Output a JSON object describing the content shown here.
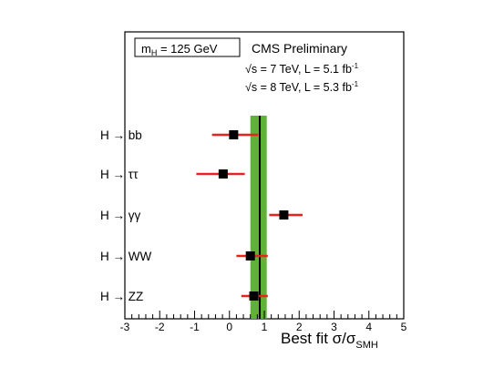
{
  "chart_data": {
    "type": "scatter",
    "annotations": {
      "mass_box": {
        "prefix": "m",
        "sub": "H",
        "rest": " = 125 GeV"
      },
      "experiment": "CMS Preliminary",
      "lumi_7": {
        "sqrt": "√s = 7 TeV, L = 5.1 fb",
        "sup": "-1"
      },
      "lumi_8": {
        "sqrt": "√s = 8 TeV, L = 5.3 fb",
        "sup": "-1"
      }
    },
    "xlabel": {
      "main": "Best fit σ/σ",
      "sub": "SMH"
    },
    "xlim": [
      -3,
      5
    ],
    "xticks": [
      "-3",
      "-2",
      "-1",
      "0",
      "1",
      "2",
      "3",
      "4",
      "5"
    ],
    "categories": [
      "H → bb",
      "H → ττ",
      "H → γγ",
      "H → WW",
      "H → ZZ"
    ],
    "values": [
      0.12,
      -0.18,
      1.56,
      0.6,
      0.7
    ],
    "err_low": [
      0.62,
      0.77,
      0.42,
      0.4,
      0.36
    ],
    "err_high": [
      0.7,
      0.62,
      0.54,
      0.5,
      0.4
    ],
    "combined": {
      "value": 0.87,
      "low": 0.6,
      "high": 1.07
    },
    "colors": {
      "band": "#5fb13a",
      "errorbar": "#e8221c",
      "marker": "#000000",
      "line": "#000000"
    }
  }
}
